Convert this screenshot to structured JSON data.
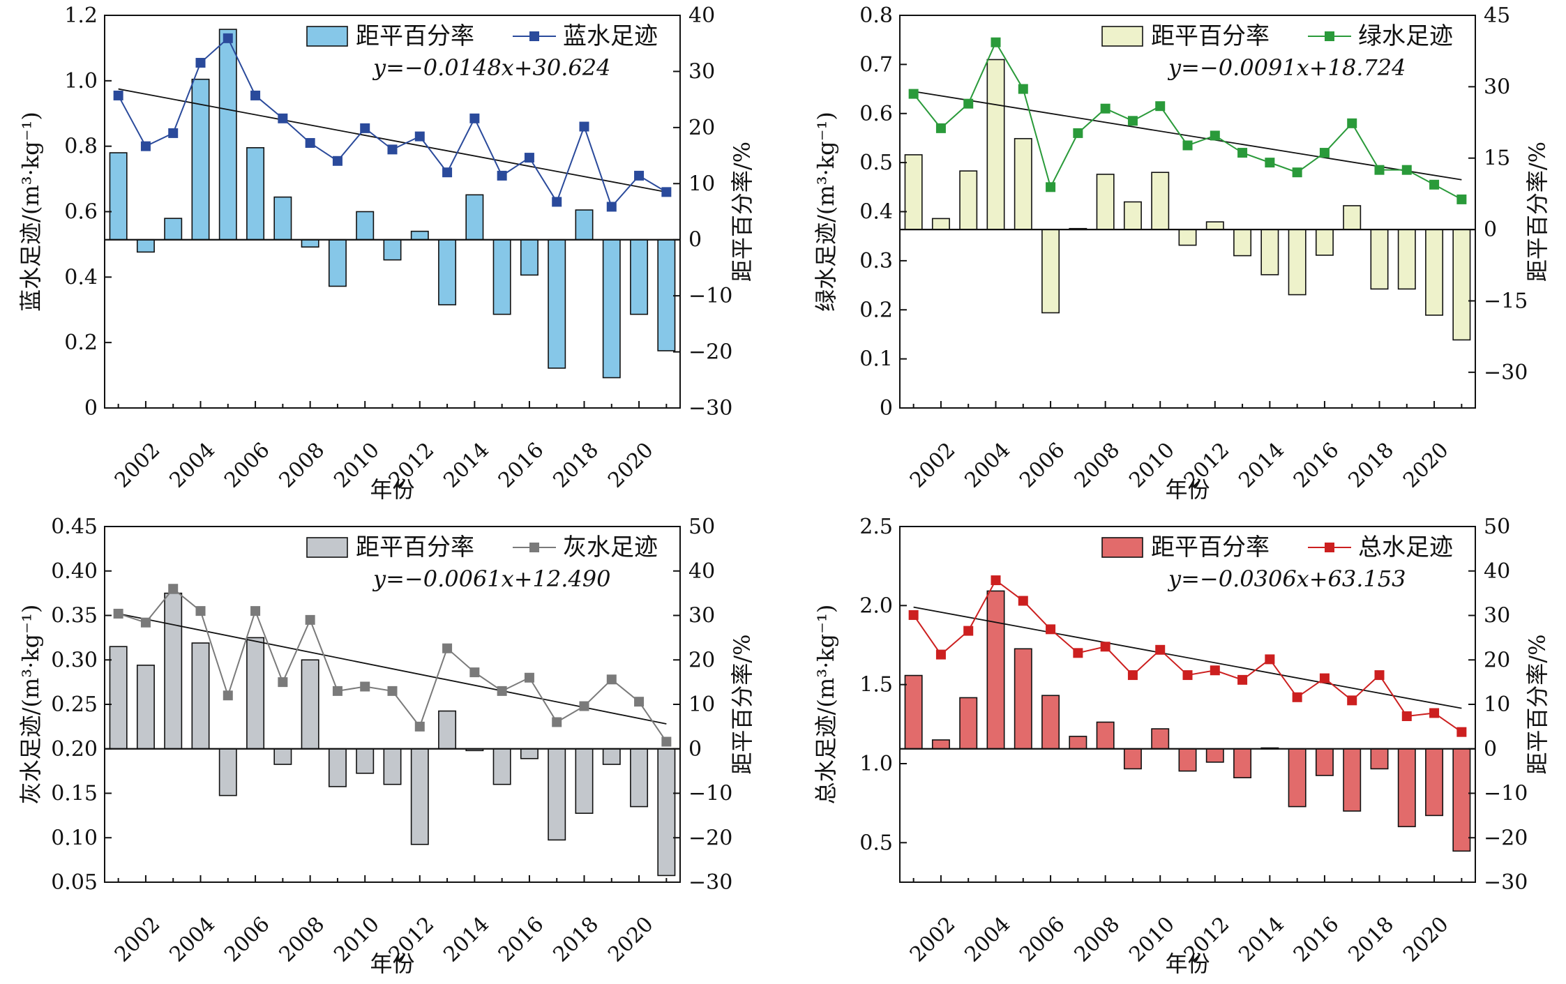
{
  "chart_data": [
    {
      "id": "blue",
      "type": "bar+line",
      "xlabel": "年份",
      "ylabel_left": "蓝水足迹/(m³·kg⁻¹)",
      "ylabel_right": "距平百分率/%",
      "legend_bar": "距平百分率",
      "legend_line": "蓝水足迹",
      "equation": "y=−0.0148x+30.624",
      "bar_color": "#86c7e8",
      "line_color": "#2a4a9b",
      "left_ylim": [
        0,
        1.2
      ],
      "left_ticks": [
        "0",
        "0.2",
        "0.4",
        "0.6",
        "0.8",
        "1.0",
        "1.2"
      ],
      "right_ylim": [
        -30,
        40
      ],
      "right_ticks": [
        "−30",
        "−20",
        "−10",
        "0",
        "10",
        "20",
        "30",
        "40"
      ],
      "years": [
        2001,
        2002,
        2003,
        2004,
        2005,
        2006,
        2007,
        2008,
        2009,
        2010,
        2011,
        2012,
        2013,
        2014,
        2015,
        2016,
        2017,
        2018,
        2019,
        2020,
        2021
      ],
      "xtick_labels": [
        "2002",
        "2004",
        "2006",
        "2008",
        "2010",
        "2012",
        "2014",
        "2016",
        "2018",
        "2020"
      ],
      "anomaly": [
        15.5,
        -2.2,
        3.8,
        28.6,
        37.5,
        16.4,
        7.6,
        -1.3,
        -8.3,
        5.0,
        -3.6,
        1.5,
        -11.6,
        8.0,
        -13.3,
        -6.3,
        -22.9,
        5.3,
        -24.6,
        -13.3,
        -19.8
      ],
      "footprint": [
        0.955,
        0.8,
        0.84,
        1.055,
        1.13,
        0.955,
        0.885,
        0.81,
        0.755,
        0.855,
        0.79,
        0.83,
        0.72,
        0.885,
        0.71,
        0.765,
        0.63,
        0.86,
        0.615,
        0.71,
        0.66
      ],
      "trend": [
        0.975,
        0.66
      ]
    },
    {
      "id": "green",
      "type": "bar+line",
      "xlabel": "年份",
      "ylabel_left": "绿水足迹/(m³·kg⁻¹)",
      "ylabel_right": "距平百分率/%",
      "legend_bar": "距平百分率",
      "legend_line": "绿水足迹",
      "equation": "y=−0.0091x+18.724",
      "bar_color": "#eef2cb",
      "line_color": "#2a9a3a",
      "left_ylim": [
        0,
        0.8
      ],
      "left_ticks": [
        "0",
        "0.1",
        "0.2",
        "0.3",
        "0.4",
        "0.5",
        "0.6",
        "0.7",
        "0.8"
      ],
      "right_ylim": [
        -37.5,
        45
      ],
      "right_ticks": [
        "−30",
        "−15",
        "0",
        "15",
        "30",
        "45"
      ],
      "right_tick_values": [
        -30,
        -15,
        0,
        15,
        30,
        45
      ],
      "years": [
        2001,
        2002,
        2003,
        2004,
        2005,
        2006,
        2007,
        2008,
        2009,
        2010,
        2011,
        2012,
        2013,
        2014,
        2015,
        2016,
        2017,
        2018,
        2019,
        2020,
        2021
      ],
      "xtick_labels": [
        "2002",
        "2004",
        "2006",
        "2008",
        "2010",
        "2012",
        "2014",
        "2016",
        "2018",
        "2020"
      ],
      "anomaly": [
        15.7,
        2.3,
        12.3,
        35.7,
        19.1,
        -17.5,
        0.2,
        11.6,
        5.8,
        12.0,
        -3.3,
        1.6,
        -5.5,
        -9.5,
        -13.7,
        -5.4,
        5.0,
        -12.5,
        -12.5,
        -18.0,
        -23.2
      ],
      "footprint": [
        0.64,
        0.57,
        0.62,
        0.745,
        0.65,
        0.45,
        0.56,
        0.61,
        0.585,
        0.615,
        0.535,
        0.555,
        0.52,
        0.5,
        0.48,
        0.52,
        0.58,
        0.485,
        0.485,
        0.455,
        0.425
      ],
      "trend": [
        0.645,
        0.465
      ]
    },
    {
      "id": "grey",
      "type": "bar+line",
      "xlabel": "年份",
      "ylabel_left": "灰水足迹/(m³·kg⁻¹)",
      "ylabel_right": "距平百分率/%",
      "legend_bar": "距平百分率",
      "legend_line": "灰水足迹",
      "equation": "y=−0.0061x+12.490",
      "bar_color": "#c3c7cc",
      "line_color": "#7a7a7a",
      "left_ylim": [
        0.05,
        0.45
      ],
      "left_ticks": [
        "0.05",
        "0.10",
        "0.15",
        "0.20",
        "0.25",
        "0.30",
        "0.35",
        "0.40",
        "0.45"
      ],
      "right_ylim": [
        -30,
        50
      ],
      "right_ticks": [
        "−30",
        "−20",
        "−10",
        "0",
        "10",
        "20",
        "30",
        "40",
        "50"
      ],
      "years": [
        2001,
        2002,
        2003,
        2004,
        2005,
        2006,
        2007,
        2008,
        2009,
        2010,
        2011,
        2012,
        2013,
        2014,
        2015,
        2016,
        2017,
        2018,
        2019,
        2020,
        2021
      ],
      "xtick_labels": [
        "2002",
        "2004",
        "2006",
        "2008",
        "2010",
        "2012",
        "2014",
        "2016",
        "2018",
        "2020"
      ],
      "anomaly": [
        23.0,
        18.8,
        35.0,
        23.8,
        -10.5,
        25.0,
        -3.5,
        20.0,
        -8.5,
        -5.5,
        -8.0,
        -21.5,
        8.5,
        -0.4,
        -8.0,
        -2.2,
        -20.5,
        -14.5,
        -3.5,
        -13.0,
        -28.5
      ],
      "footprint": [
        0.352,
        0.342,
        0.38,
        0.355,
        0.26,
        0.355,
        0.275,
        0.345,
        0.265,
        0.27,
        0.265,
        0.225,
        0.313,
        0.286,
        0.265,
        0.28,
        0.23,
        0.248,
        0.278,
        0.253,
        0.208
      ],
      "trend": [
        0.352,
        0.228
      ]
    },
    {
      "id": "total",
      "type": "bar+line",
      "xlabel": "年份",
      "ylabel_left": "总水足迹/(m³·kg⁻¹)",
      "ylabel_right": "距平百分率/%",
      "legend_bar": "距平百分率",
      "legend_line": "总水足迹",
      "equation": "y=−0.0306x+63.153",
      "bar_color": "#e26b6b",
      "line_color": "#cc1f1f",
      "left_ylim": [
        0.25,
        2.5
      ],
      "left_ticks": [
        "0.5",
        "1.0",
        "1.5",
        "2.0",
        "2.5"
      ],
      "left_tick_values": [
        0.5,
        1.0,
        1.5,
        2.0,
        2.5
      ],
      "right_ylim": [
        -30,
        50
      ],
      "right_ticks": [
        "−30",
        "−20",
        "−10",
        "0",
        "10",
        "20",
        "30",
        "40",
        "50"
      ],
      "years": [
        2001,
        2002,
        2003,
        2004,
        2005,
        2006,
        2007,
        2008,
        2009,
        2010,
        2011,
        2012,
        2013,
        2014,
        2015,
        2016,
        2017,
        2018,
        2019,
        2020,
        2021
      ],
      "xtick_labels": [
        "2002",
        "2004",
        "2006",
        "2008",
        "2010",
        "2012",
        "2014",
        "2016",
        "2018",
        "2020"
      ],
      "anomaly": [
        16.5,
        2.0,
        11.5,
        35.5,
        22.5,
        12.0,
        2.8,
        6.0,
        -4.5,
        4.5,
        -5.0,
        -3.0,
        -6.5,
        0.2,
        -13.0,
        -6.0,
        -14.0,
        -4.5,
        -17.5,
        -15.0,
        -23.0
      ],
      "footprint": [
        1.94,
        1.69,
        1.84,
        2.16,
        2.03,
        1.85,
        1.7,
        1.74,
        1.56,
        1.72,
        1.56,
        1.59,
        1.53,
        1.66,
        1.42,
        1.54,
        1.4,
        1.56,
        1.3,
        1.32,
        1.2
      ],
      "trend": [
        1.99,
        1.35
      ]
    }
  ]
}
